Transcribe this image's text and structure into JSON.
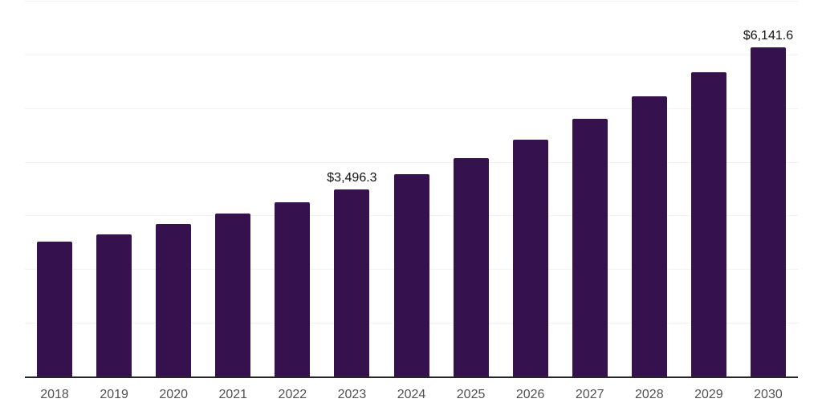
{
  "chart_data": {
    "type": "bar",
    "title": "",
    "xlabel": "",
    "ylabel": "",
    "categories": [
      "2018",
      "2019",
      "2020",
      "2021",
      "2022",
      "2023",
      "2024",
      "2025",
      "2026",
      "2027",
      "2028",
      "2029",
      "2030"
    ],
    "values": [
      2530,
      2670,
      2850,
      3050,
      3260,
      3496.3,
      3780,
      4090,
      4425,
      4810,
      5235,
      5685,
      6141.6
    ],
    "point_labels": [
      "",
      "",
      "",
      "",
      "",
      "$3,496.3",
      "",
      "",
      "",
      "",
      "",
      "",
      "$6,141.6"
    ],
    "ylim": [
      0,
      7000
    ],
    "gridline_step": 1000,
    "grid": true,
    "legend": false
  },
  "style": {
    "bar_color": "#35124E",
    "grid_color": "#f2f2f2",
    "axis_color": "#262626",
    "tick_label_color": "#525252",
    "data_label_color": "#111111",
    "background_color": "#ffffff"
  }
}
